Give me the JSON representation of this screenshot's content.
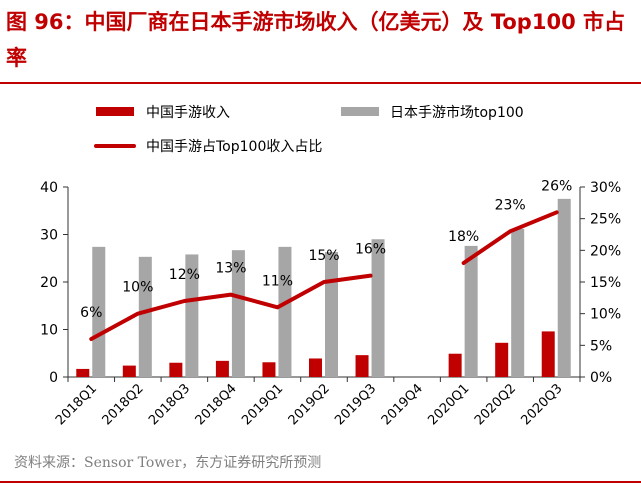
{
  "title": "图 96：中国厂商在日本手游市场收入（亿美元）及 Top100 市占率",
  "source": "资料来源：Sensor Tower，东方证券研究所预测",
  "colors": {
    "china_bar": "#c00000",
    "market_bar": "#a6a6a6",
    "share_line": "#c00000",
    "axis": "#333333"
  },
  "chart_data": {
    "type": "bar",
    "categories": [
      "2018Q1",
      "2018Q2",
      "2018Q3",
      "2018Q4",
      "2019Q1",
      "2019Q2",
      "2019Q3",
      "2019Q4",
      "2020Q1",
      "2020Q2",
      "2020Q3"
    ],
    "series": [
      {
        "name": "中国手游收入",
        "type": "bar",
        "axis": "left",
        "values": [
          1.7,
          2.4,
          3.0,
          3.4,
          3.1,
          3.9,
          4.6,
          null,
          4.9,
          7.2,
          9.6
        ]
      },
      {
        "name": "日本手游市场top100",
        "type": "bar",
        "axis": "left",
        "values": [
          27.4,
          25.3,
          25.8,
          26.7,
          27.4,
          26.3,
          29.0,
          null,
          27.6,
          31.2,
          37.5
        ]
      },
      {
        "name": "中国手游占Top100收入占比",
        "type": "line",
        "axis": "right",
        "values": [
          6,
          10,
          12,
          13,
          11,
          15,
          16,
          null,
          18,
          23,
          26
        ],
        "labels": [
          "6%",
          "10%",
          "12%",
          "13%",
          "11%",
          "15%",
          "16%",
          "",
          "18%",
          "23%",
          "26%"
        ]
      }
    ],
    "ylim_left": [
      0,
      40
    ],
    "yticks_left": [
      "0",
      "10",
      "20",
      "30",
      "40"
    ],
    "ylim_right": [
      0,
      30
    ],
    "yticks_right": [
      "0%",
      "5%",
      "10%",
      "15%",
      "20%",
      "25%",
      "30%"
    ],
    "legend_position": "top",
    "grid": false
  }
}
